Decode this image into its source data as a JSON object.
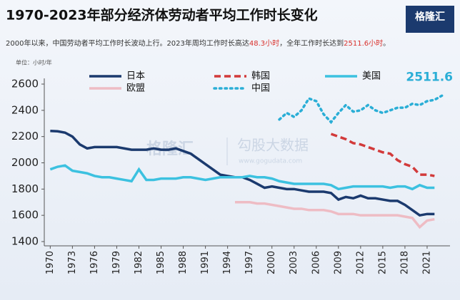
{
  "chart_data": {
    "type": "line",
    "title": "1970-2023年部分经济体劳动者平均工作时长变化",
    "subtitle": [
      "2000年以来，中国劳动者平均工作时长波动上行。2023年周均工作时长高达",
      "48.3小时",
      "，全年工作时长达到",
      "2511.6小时",
      "。"
    ],
    "subtitle_highlight": [
      false,
      true,
      false,
      true,
      false
    ],
    "highlight_color": "#d9302c",
    "unit": "单位：小时/年",
    "logo": "格隆汇",
    "watermark": [
      "格隆汇",
      "勾股大数据",
      "www.gogudata.com"
    ],
    "annotation": {
      "text": "2511.6",
      "series": 4,
      "index": 53
    },
    "x": [
      1970,
      1971,
      1972,
      1973,
      1974,
      1975,
      1976,
      1977,
      1978,
      1979,
      1980,
      1981,
      1982,
      1983,
      1984,
      1985,
      1986,
      1987,
      1988,
      1989,
      1990,
      1991,
      1992,
      1993,
      1994,
      1995,
      1996,
      1997,
      1998,
      1999,
      2000,
      2001,
      2002,
      2003,
      2004,
      2005,
      2006,
      2007,
      2008,
      2009,
      2010,
      2011,
      2012,
      2013,
      2014,
      2015,
      2016,
      2017,
      2018,
      2019,
      2020,
      2021,
      2022,
      2023
    ],
    "xlim": [
      1969,
      2024
    ],
    "xticks": [
      1970,
      1973,
      1976,
      1979,
      1982,
      1985,
      1988,
      1991,
      1994,
      1997,
      2000,
      2003,
      2006,
      2009,
      2012,
      2015,
      2018,
      2021
    ],
    "ylim": [
      1400,
      2600
    ],
    "yticks": [
      1400,
      1600,
      1800,
      2000,
      2200,
      2400,
      2600
    ],
    "grid": false,
    "series": [
      {
        "name": "日本",
        "color": "#1b3a6e",
        "style": "solid",
        "values": [
          2243,
          2240,
          2230,
          2200,
          2140,
          2110,
          2120,
          2120,
          2120,
          2120,
          2110,
          2100,
          2100,
          2100,
          2110,
          2100,
          2100,
          2110,
          2090,
          2070,
          2030,
          1990,
          1950,
          1910,
          1900,
          1890,
          1890,
          1870,
          1840,
          1810,
          1820,
          1810,
          1800,
          1800,
          1790,
          1780,
          1780,
          1780,
          1770,
          1720,
          1740,
          1730,
          1750,
          1730,
          1730,
          1720,
          1710,
          1710,
          1680,
          1640,
          1600,
          1610,
          1610,
          null
        ]
      },
      {
        "name": "韩国",
        "color": "#d23a3a",
        "style": "dashed",
        "values": [
          null,
          null,
          null,
          null,
          null,
          null,
          null,
          null,
          null,
          null,
          null,
          null,
          null,
          null,
          null,
          null,
          null,
          null,
          null,
          null,
          null,
          null,
          null,
          null,
          null,
          null,
          null,
          null,
          null,
          null,
          null,
          null,
          null,
          null,
          null,
          null,
          null,
          null,
          2220,
          2200,
          2180,
          2150,
          2140,
          2120,
          2100,
          2080,
          2070,
          2020,
          1990,
          1970,
          1910,
          1910,
          1900,
          null
        ]
      },
      {
        "name": "美国",
        "color": "#3cc1e0",
        "style": "solid",
        "values": [
          1950,
          1970,
          1980,
          1940,
          1930,
          1920,
          1900,
          1890,
          1890,
          1880,
          1870,
          1860,
          1950,
          1870,
          1870,
          1880,
          1880,
          1880,
          1890,
          1890,
          1880,
          1870,
          1880,
          1890,
          1890,
          1890,
          1890,
          1900,
          1890,
          1890,
          1880,
          1860,
          1850,
          1840,
          1840,
          1840,
          1840,
          1840,
          1830,
          1800,
          1810,
          1820,
          1820,
          1820,
          1820,
          1820,
          1810,
          1820,
          1820,
          1800,
          1830,
          1810,
          1810,
          null
        ]
      },
      {
        "name": "欧盟",
        "color": "#eebcc4",
        "style": "solid",
        "values": [
          null,
          null,
          null,
          null,
          null,
          null,
          null,
          null,
          null,
          null,
          null,
          null,
          null,
          null,
          null,
          null,
          null,
          null,
          null,
          null,
          null,
          null,
          null,
          null,
          null,
          1700,
          1700,
          1700,
          1690,
          1690,
          1680,
          1670,
          1660,
          1650,
          1650,
          1640,
          1640,
          1640,
          1630,
          1610,
          1610,
          1610,
          1600,
          1600,
          1600,
          1600,
          1600,
          1600,
          1590,
          1580,
          1510,
          1560,
          1570,
          null
        ]
      },
      {
        "name": "中国",
        "color": "#2aaed6",
        "style": "dotted",
        "values": [
          null,
          null,
          null,
          null,
          null,
          null,
          null,
          null,
          null,
          null,
          null,
          null,
          null,
          null,
          null,
          null,
          null,
          null,
          null,
          null,
          null,
          null,
          null,
          null,
          null,
          null,
          null,
          null,
          null,
          null,
          null,
          2330,
          2380,
          2350,
          2400,
          2490,
          2470,
          2370,
          2310,
          2380,
          2440,
          2390,
          2400,
          2440,
          2400,
          2380,
          2400,
          2420,
          2420,
          2450,
          2440,
          2470,
          2480,
          2511.6
        ]
      }
    ]
  }
}
